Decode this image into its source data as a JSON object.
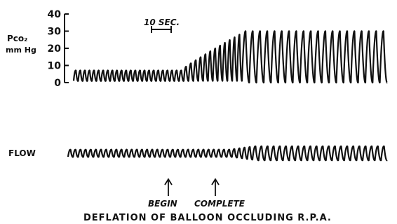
{
  "chart_data": [
    {
      "type": "line",
      "ylabel_line1": "Pco₂",
      "ylabel_line2": "mm Hg",
      "yticks": [
        0,
        10,
        20,
        30,
        40
      ],
      "ylim": [
        0,
        40
      ],
      "scale_bar_label": "10 SEC.",
      "series": [
        {
          "phases": [
            {
              "low": 1,
              "high": 7,
              "cycles": 24
            },
            {
              "low": 1,
              "high": 28,
              "cycles": 12
            },
            {
              "low": 0,
              "high": 30,
              "cycles": 20
            }
          ]
        }
      ]
    },
    {
      "type": "line",
      "label": "FLOW",
      "series": [
        {
          "phases": [
            {
              "amplitude": "small",
              "cycles": 36
            },
            {
              "amplitude": "large",
              "cycles": 22
            }
          ]
        }
      ]
    }
  ],
  "annotations": {
    "begin": "BEGIN",
    "complete": "COMPLETE",
    "caption": "DEFLATION OF BALLOON OCCLUDING R.P.A."
  },
  "colors": {
    "ink": "#111111",
    "background": "#ffffff"
  }
}
